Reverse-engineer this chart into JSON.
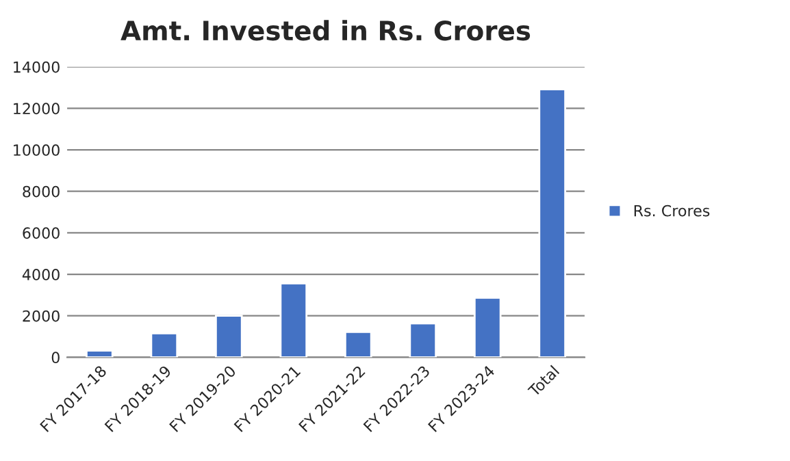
{
  "chart_data": {
    "type": "bar",
    "title": "Amt. Invested in Rs. Crores",
    "categories": [
      "FY 2017-18",
      "FY 2018-19",
      "FY 2019-20",
      "FY 2020-21",
      "FY 2021-22",
      "FY 2022-23",
      "FY 2023-24",
      "Total"
    ],
    "series": [
      {
        "name": "Rs. Crores",
        "color": "#4472c4",
        "values": [
          320,
          1150,
          2000,
          3560,
          1220,
          1630,
          2870,
          12920
        ]
      }
    ],
    "ylim": [
      0,
      14000
    ],
    "yticks": [
      0,
      2000,
      4000,
      6000,
      8000,
      10000,
      12000,
      14000
    ],
    "grid": "y",
    "legend": "right"
  }
}
